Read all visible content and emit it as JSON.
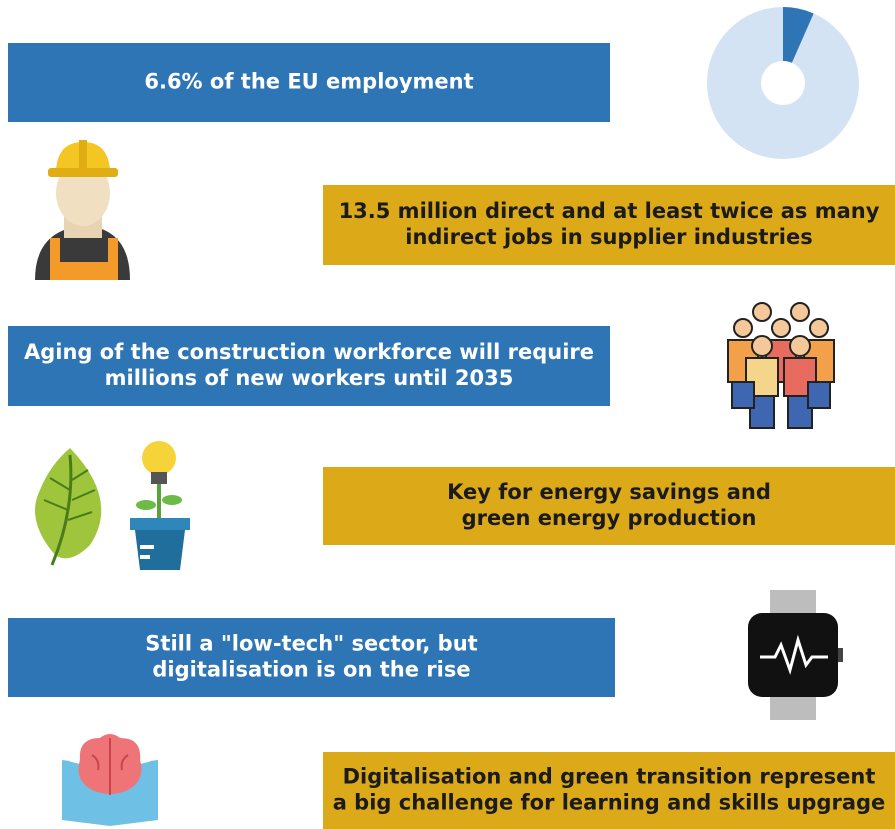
{
  "pie": {
    "value": 6.6,
    "total": 100
  },
  "banners": [
    {
      "lines": [
        "6.6% of the EU employment"
      ]
    },
    {
      "lines": [
        "13.5 million direct and at least twice as many",
        "indirect jobs in supplier industries"
      ]
    },
    {
      "lines": [
        "Aging of the construction workforce will require",
        "millions of new workers until 2035"
      ]
    },
    {
      "lines": [
        "Key for energy savings and",
        "green energy production"
      ]
    },
    {
      "lines": [
        "Still a \"low-tech\" sector, but",
        "digitalisation is on the rise"
      ]
    },
    {
      "lines": [
        "Digitalisation and green transition represent",
        "a big challenge for learning and skills upgrage"
      ]
    }
  ]
}
